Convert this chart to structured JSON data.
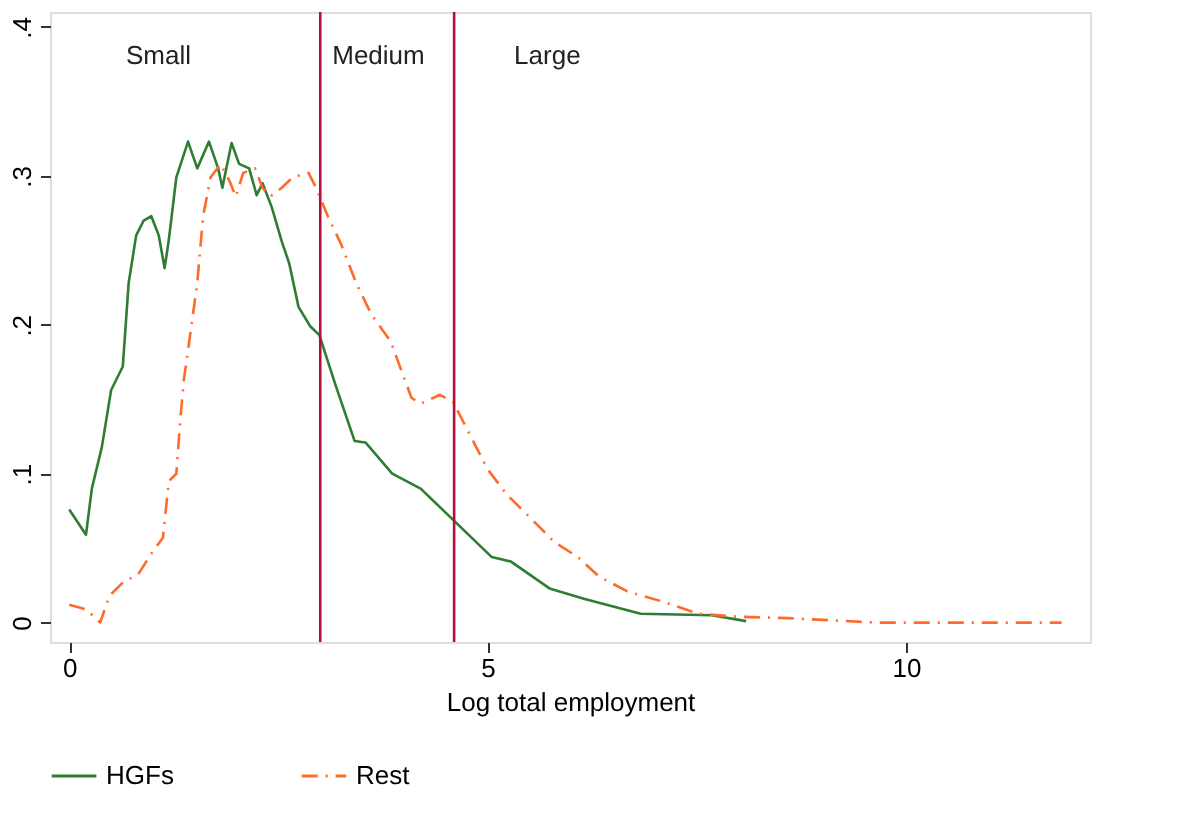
{
  "chart_data": {
    "type": "line",
    "xlabel": "Log total employment",
    "xlim": [
      -0.23,
      12.2
    ],
    "ylim": [
      -0.013,
      0.41
    ],
    "xticks": [
      0,
      5,
      10
    ],
    "yticks": [
      0,
      {
        "value": 0.1,
        "label": ".1"
      },
      {
        "value": 0.2,
        "label": ".2"
      },
      {
        "value": 0.3,
        "label": ".3"
      },
      {
        "value": 0.4,
        "label": ".4"
      }
    ],
    "grid": false,
    "legend": "bottom",
    "series": [
      {
        "name": "HGFs",
        "color": "#2e7d32",
        "line_style": "solid",
        "x": [
          0,
          0.2,
          0.27,
          0.39,
          0.5,
          0.64,
          0.71,
          0.8,
          0.89,
          0.98,
          1.07,
          1.14,
          1.19,
          1.28,
          1.42,
          1.53,
          1.67,
          1.78,
          1.83,
          1.94,
          2.03,
          2.15,
          2.24,
          2.31,
          2.42,
          2.54,
          2.63,
          2.74,
          2.88,
          2.99,
          3.18,
          3.41,
          3.54,
          3.86,
          4.2,
          4.57,
          5.05,
          5.28,
          5.74,
          6.15,
          6.83,
          7.68,
          8.09
        ],
        "values": [
          0.076,
          0.059,
          0.09,
          0.118,
          0.156,
          0.172,
          0.228,
          0.26,
          0.27,
          0.273,
          0.26,
          0.238,
          0.257,
          0.299,
          0.323,
          0.305,
          0.323,
          0.305,
          0.292,
          0.322,
          0.308,
          0.305,
          0.287,
          0.295,
          0.279,
          0.256,
          0.241,
          0.212,
          0.199,
          0.193,
          0.16,
          0.122,
          0.121,
          0.1,
          0.09,
          0.07,
          0.044,
          0.041,
          0.023,
          0.016,
          0.006,
          0.005,
          0.001
        ]
      },
      {
        "name": "Rest",
        "color": "#ff6a2a",
        "line_style": "dashdot",
        "x": [
          0,
          0.2,
          0.37,
          0.48,
          0.66,
          0.82,
          1.0,
          1.12,
          1.19,
          1.28,
          1.33,
          1.37,
          1.42,
          1.53,
          1.6,
          1.69,
          1.81,
          1.92,
          1.99,
          2.08,
          2.22,
          2.31,
          2.4,
          2.54,
          2.67,
          2.86,
          2.95,
          3.09,
          3.25,
          3.43,
          3.61,
          3.84,
          4.09,
          4.2,
          4.43,
          4.59,
          5.0,
          5.23,
          5.5,
          5.8,
          6.08,
          6.33,
          6.67,
          7.1,
          7.52,
          7.98,
          8.6,
          9.65,
          11.86
        ],
        "values": [
          0.012,
          0.009,
          0.0,
          0.018,
          0.028,
          0.032,
          0.048,
          0.057,
          0.095,
          0.1,
          0.138,
          0.163,
          0.183,
          0.228,
          0.273,
          0.299,
          0.308,
          0.296,
          0.286,
          0.302,
          0.305,
          0.292,
          0.286,
          0.292,
          0.299,
          0.302,
          0.292,
          0.273,
          0.254,
          0.228,
          0.207,
          0.189,
          0.151,
          0.147,
          0.153,
          0.148,
          0.103,
          0.086,
          0.071,
          0.054,
          0.044,
          0.031,
          0.021,
          0.014,
          0.006,
          0.004,
          0.003,
          0.0,
          0.0
        ]
      }
    ],
    "ref_lines": [
      {
        "axis": "x",
        "value": 3.0,
        "color": "#b0103a"
      },
      {
        "axis": "x",
        "value": 4.6,
        "color": "#b0103a"
      }
    ],
    "annotations": [
      "Small",
      "Medium",
      "Large"
    ]
  }
}
